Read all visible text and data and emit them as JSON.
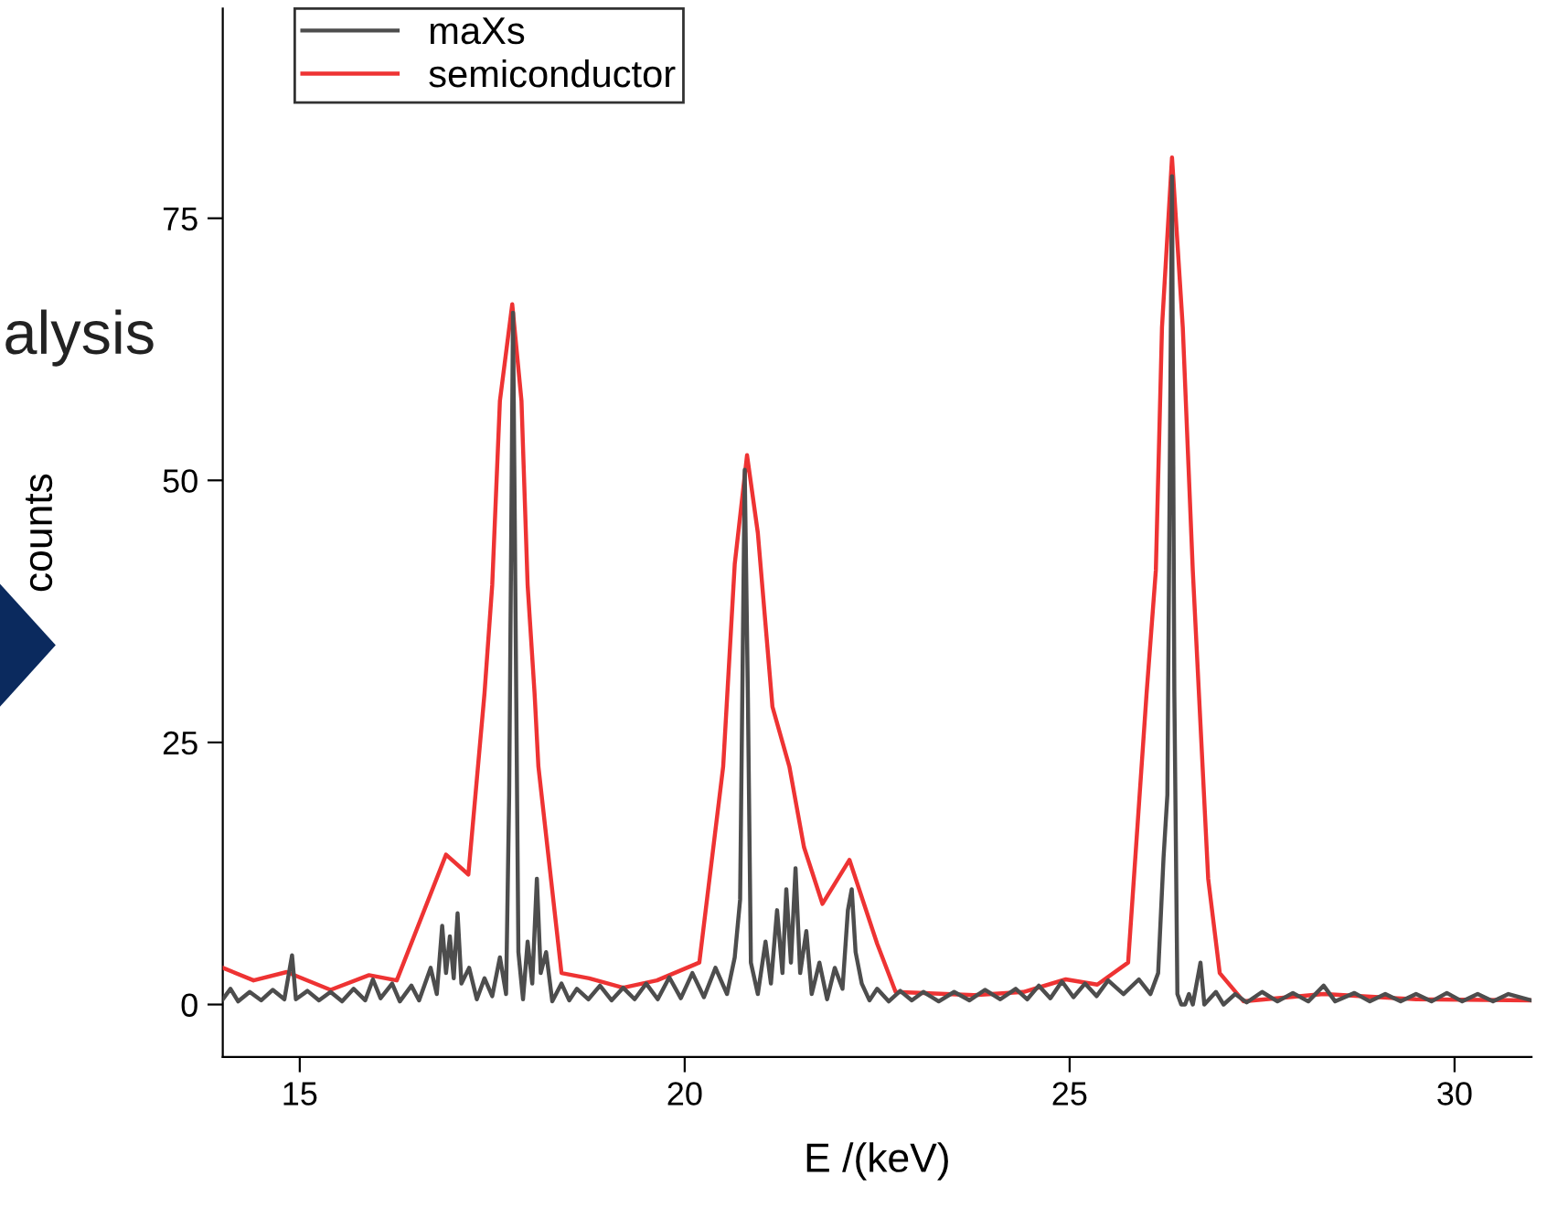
{
  "chart_data": {
    "type": "line",
    "xlabel": "E /(keV)",
    "ylabel": "counts",
    "annotations": [
      "alysis"
    ],
    "xlim": [
      14,
      31
    ],
    "xticks": [
      15,
      20,
      25,
      30
    ],
    "ylim": [
      -5,
      95
    ],
    "yticks": [
      0,
      25,
      50,
      75
    ],
    "grid": false,
    "legend": "top left",
    "line_style": "solid",
    "marker": "none",
    "series": [
      {
        "name": "maXs",
        "color": "#4d4d4d",
        "x": [
          14.0,
          14.1,
          14.2,
          14.35,
          14.5,
          14.65,
          14.8,
          14.9,
          14.95,
          15.1,
          15.25,
          15.4,
          15.55,
          15.7,
          15.85,
          15.95,
          16.05,
          16.2,
          16.3,
          16.45,
          16.55,
          16.7,
          16.78,
          16.85,
          16.9,
          16.95,
          17.0,
          17.05,
          17.1,
          17.2,
          17.3,
          17.4,
          17.5,
          17.6,
          17.68,
          17.72,
          17.77,
          17.8,
          17.84,
          17.9,
          17.96,
          18.02,
          18.08,
          18.13,
          18.2,
          18.28,
          18.4,
          18.5,
          18.6,
          18.75,
          18.9,
          19.05,
          19.2,
          19.35,
          19.5,
          19.65,
          19.8,
          19.95,
          20.1,
          20.25,
          20.4,
          20.55,
          20.65,
          20.72,
          20.78,
          20.82,
          20.86,
          20.95,
          21.05,
          21.12,
          21.2,
          21.27,
          21.32,
          21.38,
          21.44,
          21.5,
          21.58,
          21.65,
          21.75,
          21.85,
          21.95,
          22.05,
          22.12,
          22.17,
          22.22,
          22.3,
          22.4,
          22.5,
          22.65,
          22.8,
          22.95,
          23.1,
          23.3,
          23.5,
          23.7,
          23.9,
          24.1,
          24.3,
          24.45,
          24.6,
          24.75,
          24.9,
          25.05,
          25.2,
          25.35,
          25.5,
          25.7,
          25.9,
          26.05,
          26.15,
          26.22,
          26.27,
          26.3,
          26.33,
          26.36,
          26.4,
          26.45,
          26.5,
          26.55,
          26.6,
          26.7,
          26.75,
          26.9,
          27.0,
          27.15,
          27.3,
          27.5,
          27.7,
          27.9,
          28.1,
          28.3,
          28.45,
          28.7,
          28.9,
          29.1,
          29.3,
          29.5,
          29.7,
          29.9,
          30.1,
          30.3,
          30.5,
          30.7,
          31.0
        ],
        "values": [
          0.5,
          1.5,
          0.3,
          1.2,
          0.4,
          1.4,
          0.5,
          4.7,
          0.5,
          1.3,
          0.4,
          1.2,
          0.3,
          1.5,
          0.4,
          2.4,
          0.6,
          2.0,
          0.3,
          1.8,
          0.4,
          3.5,
          1.0,
          7.5,
          3.0,
          6.5,
          2.5,
          8.7,
          2.0,
          3.5,
          0.5,
          2.5,
          0.8,
          4.5,
          1.0,
          20,
          66,
          40,
          5,
          0.5,
          6,
          2,
          12,
          3,
          5,
          0.3,
          2,
          0.4,
          1.5,
          0.5,
          1.8,
          0.4,
          1.6,
          0.5,
          2.0,
          0.5,
          2.6,
          0.6,
          3.0,
          0.7,
          3.5,
          1.0,
          4.5,
          10,
          51,
          30,
          4,
          1.0,
          6,
          2,
          9,
          3,
          11,
          4,
          13,
          3,
          7,
          1,
          4,
          0.5,
          3.5,
          1.5,
          9,
          11,
          5,
          2,
          0.4,
          1.5,
          0.3,
          1.3,
          0.4,
          1.2,
          0.3,
          1.2,
          0.4,
          1.4,
          0.5,
          1.5,
          0.5,
          1.8,
          0.6,
          2.2,
          0.7,
          2.0,
          0.8,
          2.3,
          1.0,
          2.4,
          1.0,
          3,
          14,
          20,
          50,
          79,
          30,
          1,
          0.0,
          0.0,
          1.0,
          0.0,
          4.0,
          0.0,
          1.2,
          0.0,
          1.0,
          0.2,
          1.2,
          0.3,
          1.1,
          0.3,
          1.8,
          0.3,
          1.1,
          0.3,
          1.0,
          0.3,
          1.0,
          0.3,
          1.1,
          0.3,
          1.0,
          0.3,
          1.0,
          0.4
        ]
      },
      {
        "name": "semiconductor",
        "color": "#ee3333",
        "x": [
          14.0,
          14.4,
          14.83,
          15.4,
          15.9,
          16.26,
          16.9,
          17.19,
          17.4,
          17.5,
          17.6,
          17.76,
          17.88,
          17.96,
          18.05,
          18.1,
          18.4,
          18.76,
          19.2,
          19.64,
          20.19,
          20.5,
          20.65,
          20.81,
          20.95,
          21.14,
          21.36,
          21.55,
          21.79,
          22.14,
          22.5,
          22.74,
          23.76,
          24.4,
          24.95,
          25.36,
          25.76,
          26.0,
          26.12,
          26.2,
          26.33,
          26.47,
          26.6,
          26.8,
          26.95,
          27.26,
          28.3,
          29.5,
          31.0
        ],
        "values": [
          3.5,
          2.3,
          3.1,
          1.4,
          2.8,
          2.3,
          14.3,
          12.4,
          29.7,
          40,
          57.6,
          66.8,
          57.6,
          40,
          29.7,
          22.7,
          3.0,
          2.5,
          1.6,
          2.3,
          4.0,
          22.7,
          42,
          52.4,
          45,
          28.4,
          22.7,
          15,
          9.6,
          13.8,
          5.8,
          1.2,
          0.9,
          1.2,
          2.4,
          1.9,
          4.0,
          29.7,
          41.4,
          64.6,
          80.8,
          64.6,
          41.4,
          12,
          3.0,
          0.3,
          1.0,
          0.5,
          0.4
        ]
      }
    ]
  }
}
